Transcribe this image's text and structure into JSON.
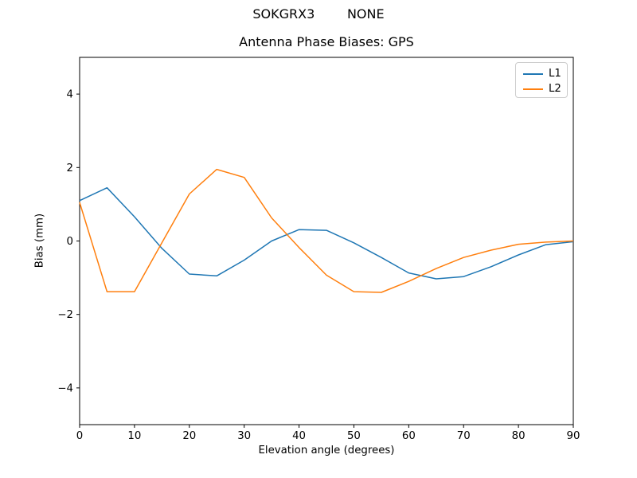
{
  "figure": {
    "suptitle": "SOKGRX3        NONE"
  },
  "legend": {
    "items": [
      {
        "label": "L1"
      },
      {
        "label": "L2"
      }
    ]
  },
  "chart_data": {
    "type": "line",
    "title": "Antenna Phase Biases: GPS",
    "xlabel": "Elevation angle (degrees)",
    "ylabel": "Bias (mm)",
    "xlim": [
      0,
      90
    ],
    "ylim": [
      -5,
      5
    ],
    "xticks": [
      0,
      10,
      20,
      30,
      40,
      50,
      60,
      70,
      80,
      90
    ],
    "yticks": [
      -4,
      -2,
      0,
      2,
      4
    ],
    "grid": false,
    "legend_position": "upper right",
    "x": [
      0,
      5,
      10,
      15,
      20,
      25,
      30,
      35,
      40,
      45,
      50,
      55,
      60,
      65,
      70,
      75,
      80,
      85,
      90
    ],
    "series": [
      {
        "name": "L1",
        "color": "#1f77b4",
        "values": [
          1.1,
          1.45,
          0.66,
          -0.2,
          -0.9,
          -0.95,
          -0.52,
          0.0,
          0.31,
          0.29,
          -0.05,
          -0.45,
          -0.87,
          -1.03,
          -0.97,
          -0.7,
          -0.38,
          -0.1,
          -0.02
        ]
      },
      {
        "name": "L2",
        "color": "#ff7f0e",
        "values": [
          1.05,
          -1.38,
          -1.38,
          -0.05,
          1.28,
          1.95,
          1.73,
          0.63,
          -0.18,
          -0.93,
          -1.38,
          -1.4,
          -1.1,
          -0.75,
          -0.45,
          -0.25,
          -0.09,
          -0.03,
          0.0
        ]
      }
    ]
  }
}
